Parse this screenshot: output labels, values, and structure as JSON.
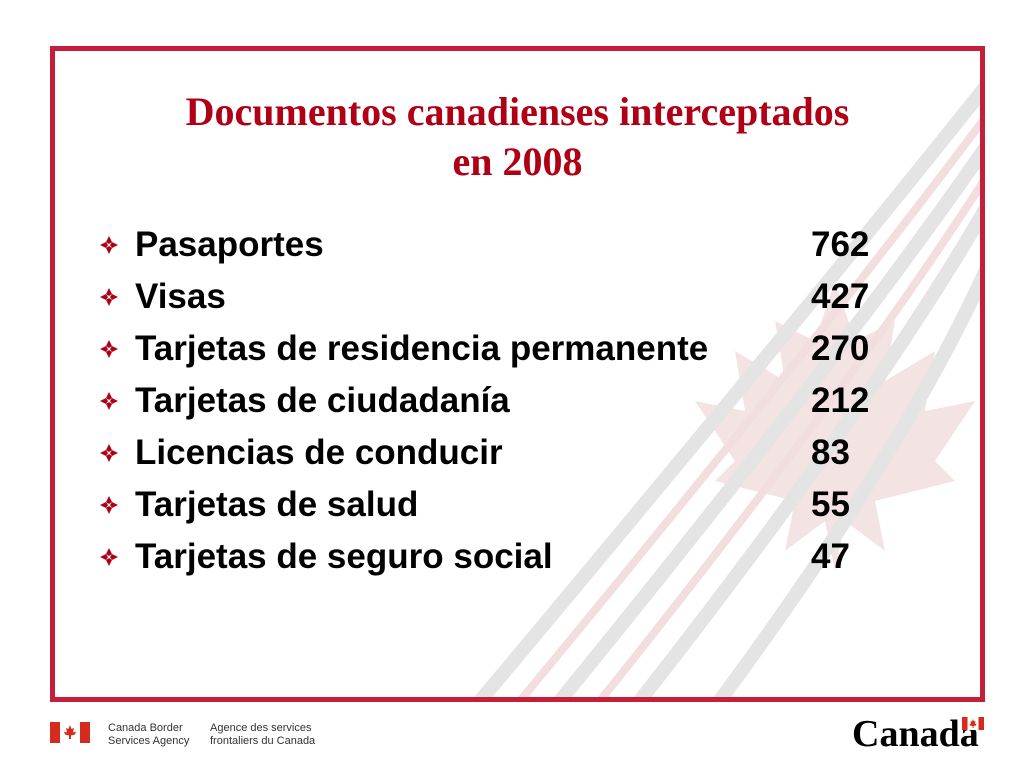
{
  "slide": {
    "title_line1": "Documentos canadienses interceptados",
    "title_line2": "en 2008",
    "items": [
      {
        "label": "Pasaportes",
        "value": "762"
      },
      {
        "label": "Visas",
        "value": "427"
      },
      {
        "label": "Tarjetas de residencia permanente",
        "value": "270"
      },
      {
        "label": "Tarjetas de ciudadanía",
        "value": "212"
      },
      {
        "label": "Licencias de conducir",
        "value": "83"
      },
      {
        "label": "Tarjetas de salud",
        "value": "55"
      },
      {
        "label": "Tarjetas de seguro social",
        "value": "47"
      }
    ]
  },
  "footer": {
    "agency_en_line1": "Canada Border",
    "agency_en_line2": "Services Agency",
    "agency_fr_line1": "Agence des services",
    "agency_fr_line2": "frontaliers du Canada",
    "wordmark": "Canada"
  },
  "colors": {
    "frame": "#c41e3a",
    "title": "#b00016",
    "bullet": "#b00016",
    "text": "#000000"
  },
  "icons": {
    "bullet": "diamond-four-petal-icon",
    "flag": "canada-flag-icon",
    "watermark": "maple-leaf-watermark"
  }
}
